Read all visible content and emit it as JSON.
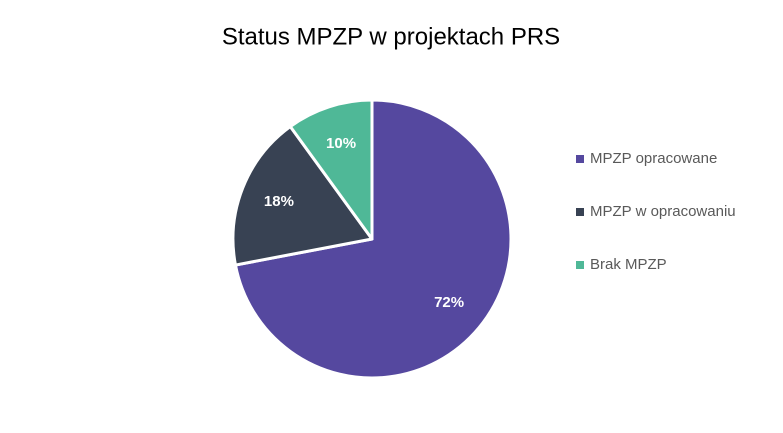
{
  "chart_data": {
    "type": "pie",
    "title": "Status MPZP w projektach PRS",
    "categories": [
      "MPZP opracowane",
      "MPZP w opracowaniu",
      "Brak MPZP"
    ],
    "values": [
      72,
      18,
      10
    ],
    "value_labels": [
      "72%",
      "18%",
      "10%"
    ],
    "colors": [
      "#55489f",
      "#384253",
      "#4fb897"
    ],
    "legend": "right"
  }
}
